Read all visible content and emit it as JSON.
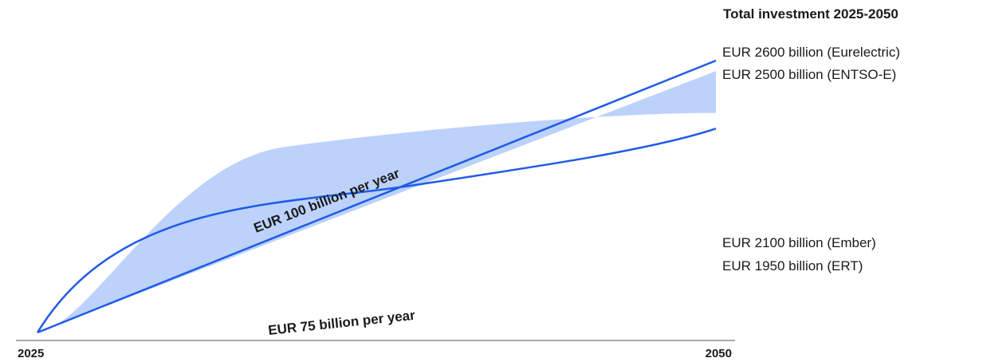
{
  "chart_data": {
    "type": "area",
    "title": "Total investment 2025-2050",
    "x_ticks": [
      "2025",
      "2050"
    ],
    "series": [
      {
        "name": "EUR 100 billion per year",
        "x": [
          2025,
          2050
        ],
        "y": [
          0,
          2600
        ]
      },
      {
        "name": "EUR 75 billion per year",
        "x": [
          2025,
          2050
        ],
        "y": [
          0,
          1950
        ]
      }
    ],
    "range_band": {
      "x": [
        2025,
        2050
      ],
      "upper": [
        0,
        2500
      ],
      "lower": [
        0,
        2100
      ]
    },
    "estimates": [
      {
        "value": 2600,
        "label": "EUR 2600 billion (Eurelectric)"
      },
      {
        "value": 2500,
        "label": "EUR 2500 billion (ENTSO-E)"
      },
      {
        "value": 2100,
        "label": "EUR 2100 billion (Ember)"
      },
      {
        "value": 1950,
        "label": "EUR 1950 billion (ERT)"
      }
    ],
    "colors": {
      "line": "#1f5be6",
      "band": "#bcd2fb",
      "axis": "#555555"
    },
    "grid": false,
    "legend": "none"
  }
}
